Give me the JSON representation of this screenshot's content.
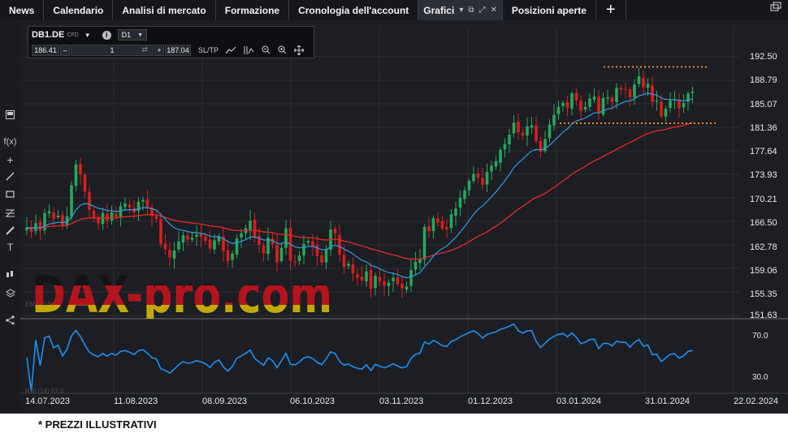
{
  "nav": {
    "tabs": [
      {
        "label": "News"
      },
      {
        "label": "Calendario"
      },
      {
        "label": "Analisi di mercato"
      },
      {
        "label": "Formazione"
      },
      {
        "label": "Cronologia dell'account"
      },
      {
        "label": "Grafici"
      },
      {
        "label": "Posizioni aperte"
      }
    ],
    "active_tab": "Grafici",
    "plus_label": "+"
  },
  "toolbar": {
    "instrument": "DB1.DE",
    "instrument_type": "CFD",
    "timeframe": "D1",
    "bid": "186.41",
    "minus": "–",
    "quantity": "1",
    "plus": "+",
    "ask": "187.04",
    "sltp_label": "SL/TP"
  },
  "chart_data": {
    "type": "candlestick",
    "y_ticks": [
      "192.50",
      "188.79",
      "185.07",
      "181.36",
      "177.64",
      "173.93",
      "170.21",
      "166.50",
      "162.78",
      "159.06",
      "155.35",
      "151.63"
    ],
    "ylim": [
      151.63,
      192.5
    ],
    "x_ticks": [
      "14.07.2023",
      "11.08.2023",
      "08.09.2023",
      "06.10.2023",
      "03.11.2023",
      "01.12.2023",
      "03.01.2024",
      "31.01.2024",
      "22.02.2024"
    ],
    "indicator_ticks": [
      "70.0",
      "30.0"
    ],
    "indicator_label": "RSI (14) 57.0",
    "main_indicator_label": "EMA (14)",
    "resistance_level": 190.9,
    "support_level": 182.0,
    "up_color": "#27a85c",
    "down_color": "#d91e1e",
    "ma_fast_color": "#2f9be0",
    "ma_slow_color": "#d82a2a",
    "rsi_color": "#1e8ff2",
    "level_color": "#f08a24",
    "closes": [
      165.5,
      164.8,
      166.2,
      165.0,
      167.8,
      168.1,
      166.9,
      167.4,
      165.8,
      167.3,
      172.2,
      175.5,
      173.9,
      171.2,
      168.3,
      167.0,
      166.2,
      167.8,
      166.6,
      167.9,
      167.2,
      168.9,
      169.3,
      168.7,
      167.9,
      169.6,
      169.9,
      168.8,
      167.3,
      166.9,
      162.9,
      162.1,
      160.8,
      161.9,
      163.3,
      164.3,
      163.6,
      163.9,
      164.4,
      164.0,
      163.4,
      162.2,
      163.5,
      164.1,
      161.8,
      160.2,
      161.4,
      163.8,
      164.6,
      165.4,
      166.6,
      164.0,
      162.8,
      161.5,
      163.9,
      162.9,
      160.0,
      162.3,
      165.4,
      160.3,
      160.0,
      161.1,
      162.9,
      163.4,
      162.6,
      161.0,
      160.0,
      162.1,
      165.2,
      164.6,
      161.2,
      159.3,
      159.8,
      158.3,
      157.6,
      157.2,
      158.6,
      155.8,
      157.9,
      157.0,
      156.3,
      156.8,
      157.6,
      156.6,
      155.9,
      156.2,
      158.8,
      160.1,
      160.5,
      165.6,
      164.9,
      167.0,
      166.3,
      165.4,
      165.2,
      167.6,
      168.5,
      170.2,
      171.4,
      172.9,
      174.0,
      173.4,
      172.3,
      174.3,
      175.3,
      176.0,
      177.8,
      178.7,
      180.2,
      182.1,
      180.6,
      180.1,
      181.5,
      181.7,
      179.2,
      177.5,
      179.5,
      181.8,
      183.3,
      184.6,
      185.2,
      184.4,
      186.7,
      185.6,
      183.9,
      184.6,
      185.9,
      186.2,
      183.6,
      186.0,
      186.1,
      185.4,
      187.6,
      187.3,
      187.3,
      186.1,
      188.1,
      189.4,
      187.7,
      188.2,
      185.4,
      185.6,
      183.1,
      184.3,
      185.6,
      185.8,
      184.4,
      185.2,
      186.7,
      187.0
    ]
  },
  "colors": {
    "nav_bg": "#15171c",
    "chart_bg": "#1c1e23",
    "grid": "#2b2e35",
    "text": "#e9e9e9"
  },
  "watermark_text": "DAX-pro.com",
  "disclaimer": "* PREZZI ILLUSTRATIVI",
  "icons": [
    "restore-window-icon",
    "expand-icon",
    "close-tab-icon",
    "info-icon",
    "chart-type-icon",
    "indicators-icon",
    "zoom-out-icon",
    "zoom-in-icon",
    "crosshair-icon",
    "function-icon",
    "plus-cross-icon",
    "line-tool-icon",
    "rectangle-tool-icon",
    "fibonacci-icon",
    "pen-icon",
    "text-tool-icon",
    "candles-icon",
    "layers-icon",
    "share-icon"
  ]
}
